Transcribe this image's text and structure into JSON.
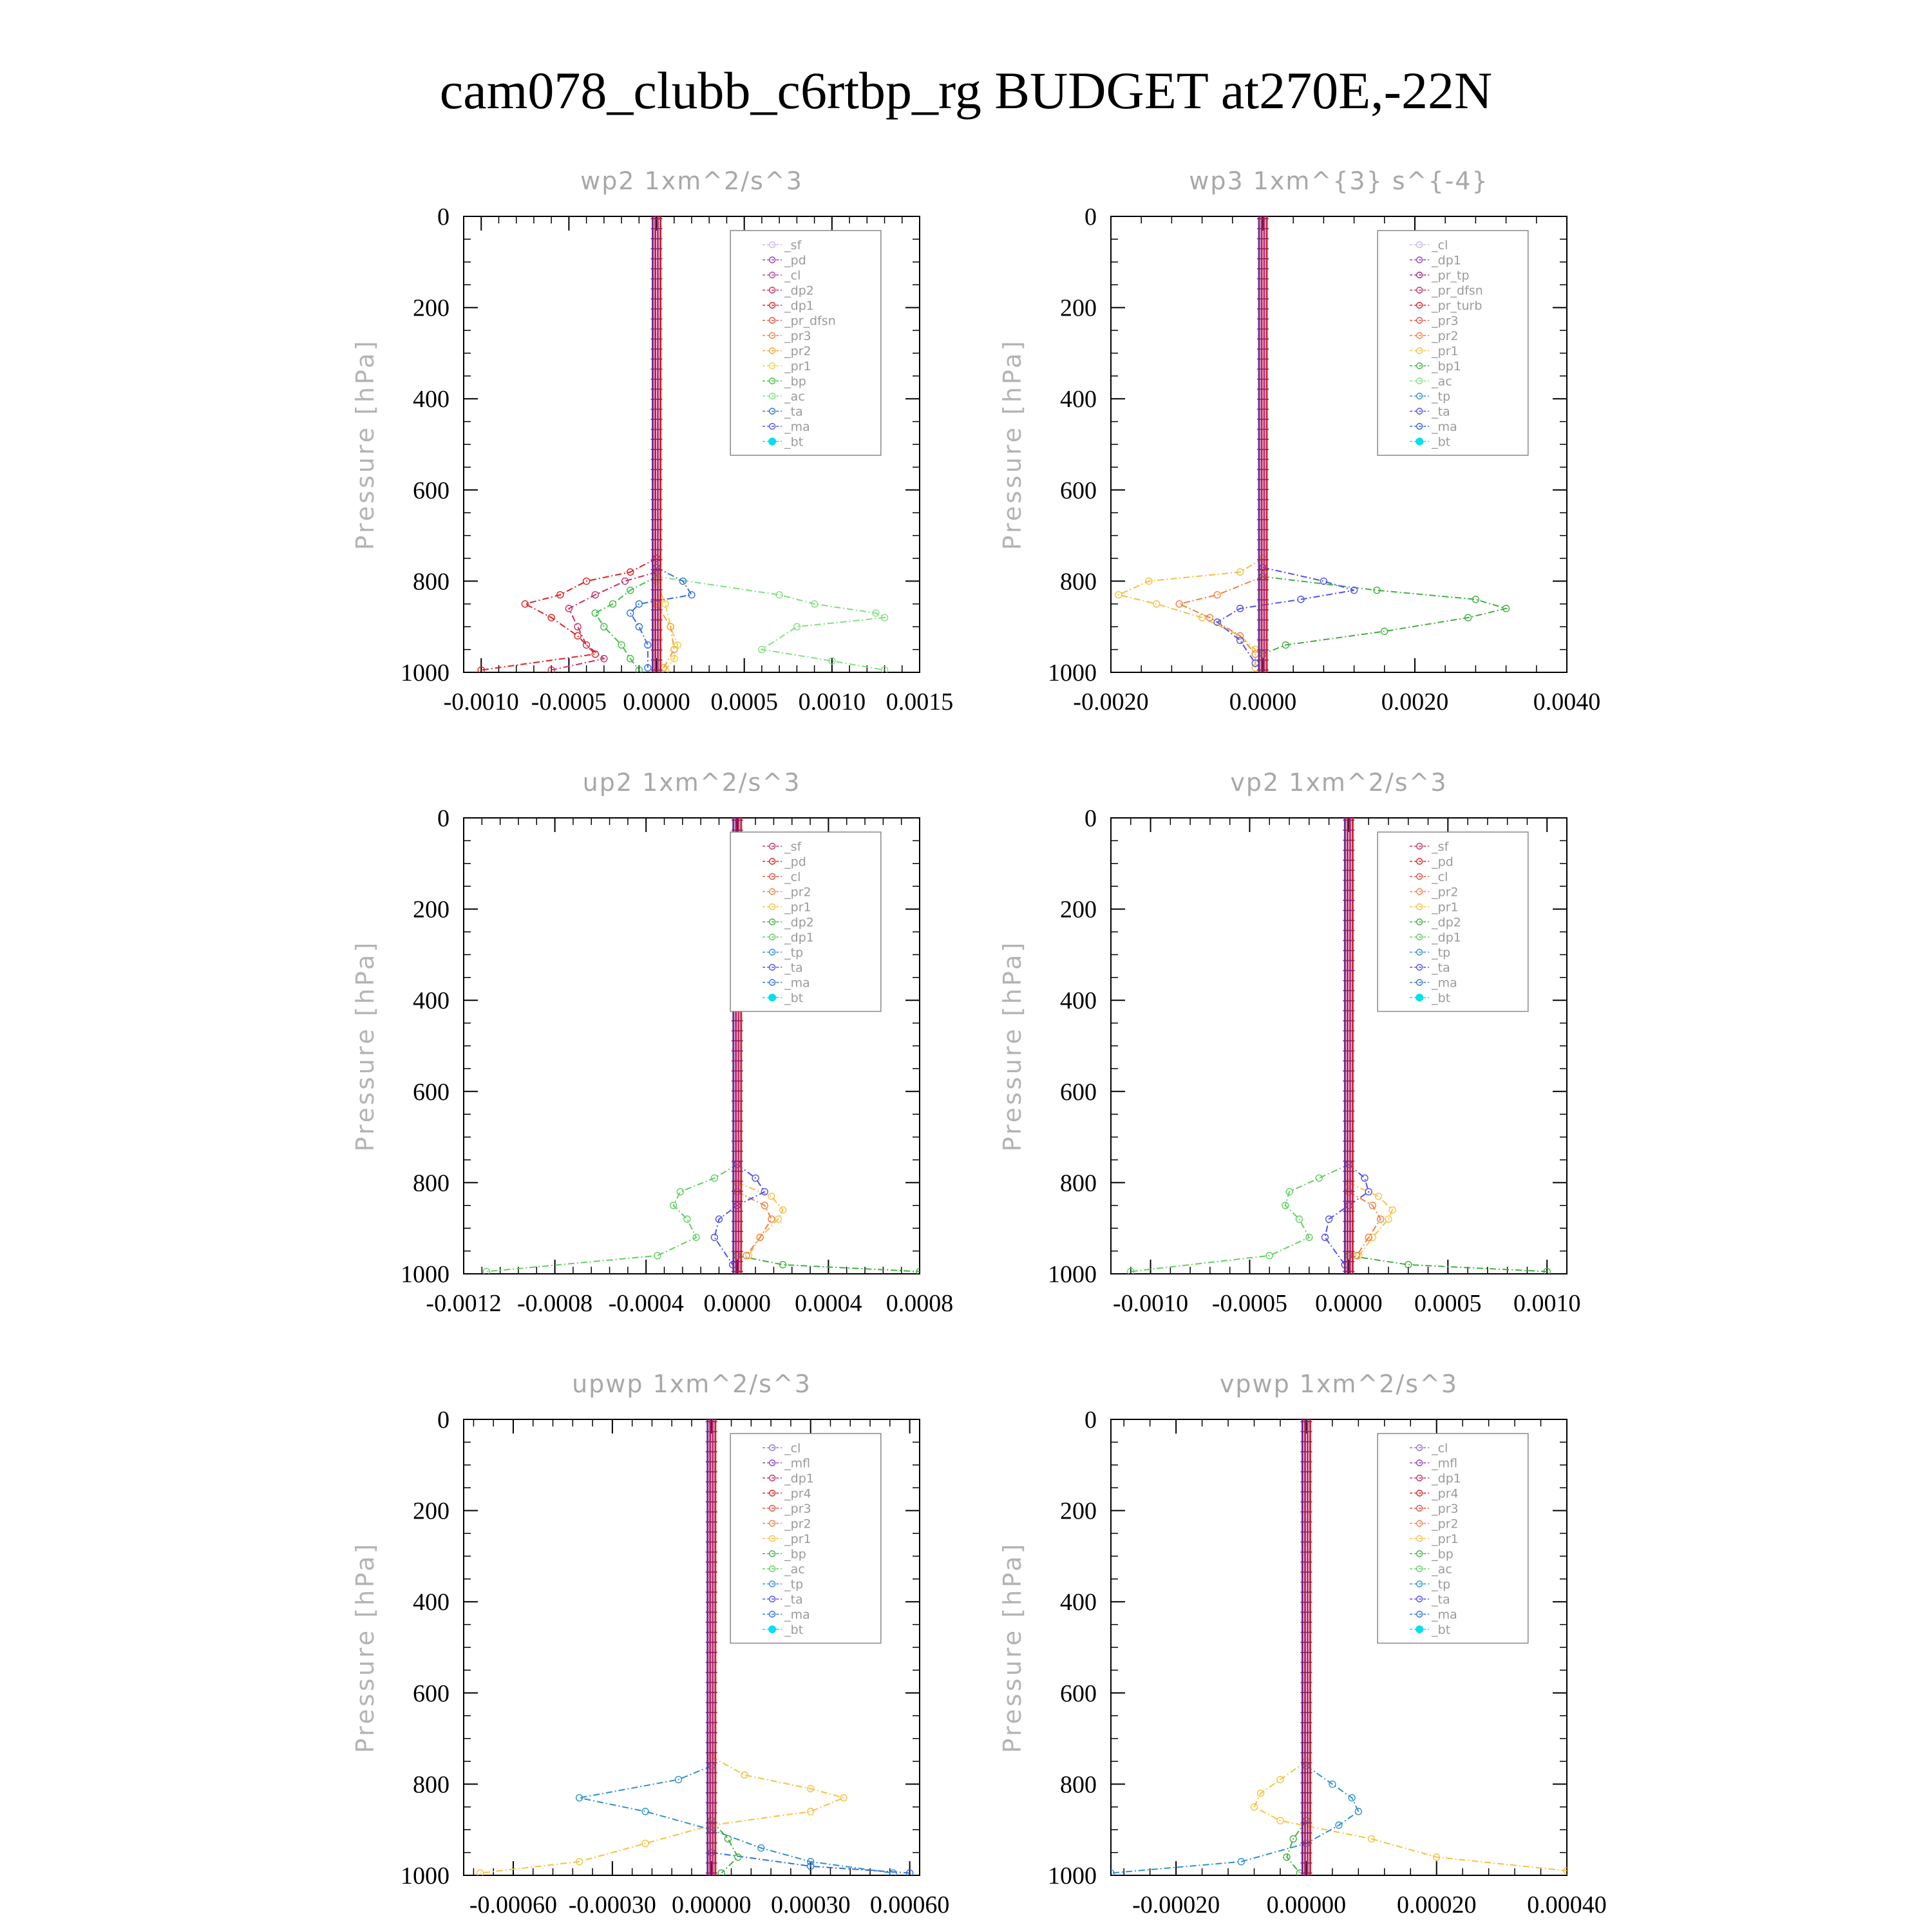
{
  "figure": {
    "title": "cam078_clubb_c6rtbp_rg  BUDGET at270E,-22N"
  },
  "chart_data": [
    {
      "type": "line",
      "title": "wp2   1xm^2/s^3",
      "ylabel": "Pressure [hPa]",
      "ylim": [
        1000,
        0
      ],
      "xlim": [
        -0.0011,
        0.0015
      ],
      "xticks": [
        -0.001,
        -0.0005,
        0.0,
        0.0005,
        0.001,
        0.0015
      ],
      "xtick_labels": [
        "-0.0010",
        "-0.0005",
        "0.0000",
        "0.0005",
        "0.0010",
        "0.0015"
      ],
      "yticks": [
        0,
        200,
        400,
        600,
        800,
        1000
      ],
      "legend_position": "top-right",
      "legend": [
        "_sf",
        "_pd",
        "_cl",
        "_dp2",
        "_dp1",
        "_pr_dfsn",
        "_pr3",
        "_pr2",
        "_pr1",
        "_bp",
        "_ac",
        "_ta",
        "_ma",
        "_bt"
      ],
      "series_colors": [
        "#c8b4e8",
        "#9040c0",
        "#b040a0",
        "#c83060",
        "#e02020",
        "#e05040",
        "#f08040",
        "#f8a030",
        "#f0d040",
        "#40c040",
        "#80e080",
        "#3070e0",
        "#5050f0",
        "#00e0f0"
      ],
      "series": [
        {
          "name": "_dp1",
          "pressure": [
            750,
            780,
            800,
            830,
            850,
            880,
            920,
            960,
            995
          ],
          "values": [
            0.0,
            -0.00015,
            -0.0004,
            -0.00055,
            -0.00075,
            -0.0006,
            -0.00045,
            -0.00035,
            -0.001
          ]
        },
        {
          "name": "_dp2",
          "pressure": [
            780,
            800,
            830,
            860,
            900,
            940,
            970,
            995
          ],
          "values": [
            0.0,
            -0.00018,
            -0.00035,
            -0.0005,
            -0.00045,
            -0.0004,
            -0.0003,
            -0.0006
          ]
        },
        {
          "name": "_bp",
          "pressure": [
            790,
            820,
            850,
            870,
            900,
            940,
            970,
            995
          ],
          "values": [
            0.0,
            -0.00015,
            -0.00025,
            -0.00035,
            -0.0003,
            -0.0002,
            -0.00015,
            -0.0001
          ]
        },
        {
          "name": "_ac",
          "pressure": [
            790,
            830,
            850,
            870,
            880,
            900,
            950,
            975,
            995
          ],
          "values": [
            0.0,
            0.0007,
            0.0009,
            0.00125,
            0.0013,
            0.0008,
            0.0006,
            0.001,
            0.0013
          ]
        },
        {
          "name": "_ta",
          "pressure": [
            770,
            800,
            830,
            850,
            870,
            900,
            940,
            990
          ],
          "values": [
            0.0,
            0.00015,
            0.0002,
            -0.0001,
            -0.00015,
            -0.0001,
            -5e-05,
            -5e-05
          ]
        },
        {
          "name": "_pr1",
          "pressure": [
            800,
            850,
            900,
            940,
            970,
            995
          ],
          "values": [
            0.0,
            5e-05,
            8e-05,
            0.00012,
            0.0001,
            5e-05
          ]
        },
        {
          "name": "_pr2",
          "pressure": [
            850,
            900,
            950,
            990
          ],
          "values": [
            0.0,
            8e-05,
            0.0001,
            4e-05
          ]
        }
      ]
    },
    {
      "type": "line",
      "title": "wp3   1xm^{3} s^{-4}",
      "ylabel": "Pressure [hPa]",
      "ylim": [
        1000,
        0
      ],
      "xlim": [
        -0.002,
        0.004
      ],
      "xticks": [
        -0.002,
        0.0,
        0.002,
        0.004
      ],
      "xtick_labels": [
        "-0.0020",
        "0.0000",
        "0.0020",
        "0.0040"
      ],
      "yticks": [
        0,
        200,
        400,
        600,
        800,
        1000
      ],
      "legend_position": "top-right",
      "legend": [
        "_cl",
        "_dp1",
        "_pr_tp",
        "_pr_dfsn",
        "_pr_turb",
        "_pr3",
        "_pr2",
        "_pr1",
        "_bp1",
        "_ac",
        "_tp",
        "_ta",
        "_ma",
        "_bt"
      ],
      "series_colors": [
        "#c8b4e8",
        "#9040c0",
        "#a02880",
        "#c83060",
        "#e02020",
        "#e05040",
        "#f08040",
        "#f0c040",
        "#40b040",
        "#80e080",
        "#3090d0",
        "#5050f0",
        "#3060e0",
        "#00e0f0"
      ],
      "series": [
        {
          "name": "_pr1",
          "pressure": [
            750,
            780,
            800,
            830,
            850,
            880,
            920,
            950,
            990
          ],
          "values": [
            0.0,
            -0.0003,
            -0.0015,
            -0.0019,
            -0.0014,
            -0.0008,
            -0.0003,
            -0.0001,
            -0.0001
          ]
        },
        {
          "name": "_pr2",
          "pressure": [
            790,
            830,
            850,
            880,
            920,
            960
          ],
          "values": [
            0.0,
            -0.0006,
            -0.0011,
            -0.0007,
            -0.0003,
            -0.0001
          ]
        },
        {
          "name": "_bp1",
          "pressure": [
            790,
            820,
            840,
            860,
            880,
            910,
            940,
            960
          ],
          "values": [
            0.0,
            0.0015,
            0.0028,
            0.0032,
            0.0027,
            0.0016,
            0.0003,
            0.0
          ]
        },
        {
          "name": "_ta",
          "pressure": [
            770,
            800,
            820,
            840,
            860,
            890,
            930,
            980
          ],
          "values": [
            0.0,
            0.0008,
            0.0012,
            0.0005,
            -0.0003,
            -0.0006,
            -0.0003,
            -0.0001
          ]
        }
      ]
    },
    {
      "type": "line",
      "title": "up2   1xm^2/s^3",
      "ylabel": "Pressure [hPa]",
      "ylim": [
        1000,
        0
      ],
      "xlim": [
        -0.0012,
        0.0008
      ],
      "xticks": [
        -0.0012,
        -0.0008,
        -0.0004,
        0.0,
        0.0004,
        0.0008
      ],
      "xtick_labels": [
        "-0.0012",
        "-0.0008",
        "-0.0004",
        "0.0000",
        "0.0004",
        "0.0008"
      ],
      "yticks": [
        0,
        200,
        400,
        600,
        800,
        1000
      ],
      "legend_position": "top-right",
      "legend": [
        "_sf",
        "_pd",
        "_cl",
        "_pr2",
        "_pr1",
        "_dp2",
        "_dp1",
        "_tp",
        "_ta",
        "_ma",
        "_bt"
      ],
      "series_colors": [
        "#c83060",
        "#e02020",
        "#e05040",
        "#f08040",
        "#f8c040",
        "#40b040",
        "#60d060",
        "#3090d0",
        "#5050f0",
        "#3070e0",
        "#00e0f0"
      ],
      "series": [
        {
          "name": "_dp1",
          "pressure": [
            760,
            790,
            820,
            850,
            880,
            920,
            960,
            995
          ],
          "values": [
            0.0,
            -0.0001,
            -0.00025,
            -0.00028,
            -0.00022,
            -0.00018,
            -0.00035,
            -0.0011
          ]
        },
        {
          "name": "_dp2",
          "pressure": [
            960,
            980,
            995
          ],
          "values": [
            0.0,
            0.0002,
            0.0008
          ]
        },
        {
          "name": "_pr1",
          "pressure": [
            800,
            830,
            860,
            880,
            920,
            960
          ],
          "values": [
            0.0,
            0.00015,
            0.0002,
            0.00018,
            0.0001,
            5e-05
          ]
        },
        {
          "name": "_pr2",
          "pressure": [
            820,
            850,
            880,
            920,
            960
          ],
          "values": [
            0.0,
            0.00012,
            0.00015,
            0.0001,
            4e-05
          ]
        },
        {
          "name": "_ta",
          "pressure": [
            760,
            790,
            820,
            850,
            880,
            920,
            980
          ],
          "values": [
            0.0,
            8e-05,
            0.00012,
            0.0,
            -8e-05,
            -0.0001,
            -2e-05
          ]
        }
      ]
    },
    {
      "type": "line",
      "title": "vp2   1xm^2/s^3",
      "ylabel": "Pressure [hPa]",
      "ylim": [
        1000,
        0
      ],
      "xlim": [
        -0.0012,
        0.0011
      ],
      "xticks": [
        -0.001,
        -0.0005,
        0.0,
        0.0005,
        0.001
      ],
      "xtick_labels": [
        "-0.0010",
        "-0.0005",
        "0.0000",
        "0.0005",
        "0.0010"
      ],
      "yticks": [
        0,
        200,
        400,
        600,
        800,
        1000
      ],
      "legend_position": "top-right",
      "legend": [
        "_sf",
        "_pd",
        "_cl",
        "_pr2",
        "_pr1",
        "_dp2",
        "_dp1",
        "_tp",
        "_ta",
        "_ma",
        "_bt"
      ],
      "series_colors": [
        "#c83060",
        "#e02020",
        "#e05040",
        "#f08040",
        "#f8c040",
        "#40b040",
        "#60d060",
        "#3090d0",
        "#5050f0",
        "#3070e0",
        "#00e0f0"
      ],
      "series": [
        {
          "name": "_dp1",
          "pressure": [
            760,
            790,
            820,
            850,
            880,
            920,
            960,
            995
          ],
          "values": [
            0.0,
            -0.00015,
            -0.0003,
            -0.00032,
            -0.00025,
            -0.0002,
            -0.0004,
            -0.0011
          ]
        },
        {
          "name": "_dp2",
          "pressure": [
            960,
            980,
            995
          ],
          "values": [
            0.0,
            0.0003,
            0.001
          ]
        },
        {
          "name": "_pr1",
          "pressure": [
            800,
            830,
            860,
            880,
            920,
            960
          ],
          "values": [
            0.0,
            0.00015,
            0.00022,
            0.0002,
            0.00012,
            5e-05
          ]
        },
        {
          "name": "_pr2",
          "pressure": [
            820,
            850,
            880,
            920,
            960
          ],
          "values": [
            0.0,
            0.00012,
            0.00016,
            0.0001,
            4e-05
          ]
        },
        {
          "name": "_ta",
          "pressure": [
            760,
            790,
            820,
            850,
            880,
            920,
            980
          ],
          "values": [
            0.0,
            8e-05,
            0.0001,
            0.0,
            -0.0001,
            -0.00012,
            -2e-05
          ]
        }
      ]
    },
    {
      "type": "line",
      "title": "upwp   1xm^2/s^3",
      "ylabel": "Pressure [hPa]",
      "ylim": [
        1000,
        0
      ],
      "xlim": [
        -0.00075,
        0.00063
      ],
      "xticks": [
        -0.0006,
        -0.0003,
        0.0,
        0.0003,
        0.0006
      ],
      "xtick_labels": [
        "-0.00060",
        "-0.00030",
        "0.00000",
        "0.00030",
        "0.00060"
      ],
      "yticks": [
        0,
        200,
        400,
        600,
        800,
        1000
      ],
      "legend_position": "top-right",
      "legend": [
        "_cl",
        "_mfl",
        "_dp1",
        "_pr4",
        "_pr3",
        "_pr2",
        "_pr1",
        "_bp",
        "_ac",
        "_tp",
        "_ta",
        "_ma",
        "_bt"
      ],
      "series_colors": [
        "#9070d0",
        "#9040c0",
        "#c83060",
        "#e02020",
        "#e05040",
        "#f08040",
        "#f8c040",
        "#40b040",
        "#60d060",
        "#3090d0",
        "#5050f0",
        "#3070e0",
        "#00e0f0"
      ],
      "series": [
        {
          "name": "_pr1",
          "pressure": [
            740,
            780,
            810,
            830,
            860,
            890,
            930,
            970,
            995
          ],
          "values": [
            0.0,
            0.0001,
            0.0003,
            0.0004,
            0.0003,
            0.0,
            -0.0002,
            -0.0004,
            -0.0007
          ]
        },
        {
          "name": "_tp",
          "pressure": [
            760,
            790,
            830,
            860,
            900,
            940,
            970,
            995
          ],
          "values": [
            0.0,
            -0.0001,
            -0.0004,
            -0.0002,
            0.0,
            0.00015,
            0.0003,
            0.00055
          ]
        },
        {
          "name": "_ma",
          "pressure": [
            950,
            980,
            995
          ],
          "values": [
            0.0,
            0.0003,
            0.0006
          ]
        },
        {
          "name": "_bp",
          "pressure": [
            880,
            920,
            960,
            995
          ],
          "values": [
            0.0,
            5e-05,
            8e-05,
            3e-05
          ]
        }
      ]
    },
    {
      "type": "line",
      "title": "vpwp   1xm^2/s^3",
      "ylabel": "Pressure [hPa]",
      "ylim": [
        1000,
        0
      ],
      "xlim": [
        -0.0003,
        0.0004
      ],
      "xticks": [
        -0.0002,
        0.0,
        0.0002,
        0.0004
      ],
      "xtick_labels": [
        "-0.00020",
        "0.00000",
        "0.00020",
        "0.00040"
      ],
      "yticks": [
        0,
        200,
        400,
        600,
        800,
        1000
      ],
      "legend_position": "top-right",
      "legend": [
        "_cl",
        "_mfl",
        "_dp1",
        "_pr4",
        "_pr3",
        "_pr2",
        "_pr1",
        "_bp",
        "_ac",
        "_tp",
        "_ta",
        "_ma",
        "_bt"
      ],
      "series_colors": [
        "#9070d0",
        "#9040c0",
        "#c83060",
        "#e02020",
        "#e05040",
        "#f08040",
        "#f8c040",
        "#40b040",
        "#60d060",
        "#3090d0",
        "#5050f0",
        "#3070e0",
        "#00e0f0"
      ],
      "series": [
        {
          "name": "_pr1",
          "pressure": [
            750,
            790,
            820,
            850,
            880,
            920,
            960,
            990
          ],
          "values": [
            0.0,
            -4e-05,
            -7e-05,
            -8e-05,
            -4e-05,
            0.0001,
            0.0002,
            0.0004
          ]
        },
        {
          "name": "_tp",
          "pressure": [
            760,
            800,
            830,
            860,
            890,
            930,
            970,
            995
          ],
          "values": [
            0.0,
            4e-05,
            7e-05,
            8e-05,
            5e-05,
            0.0,
            -0.0001,
            -0.0003
          ]
        },
        {
          "name": "_bp",
          "pressure": [
            880,
            920,
            960,
            995
          ],
          "values": [
            0.0,
            -2e-05,
            -3e-05,
            -1e-05
          ]
        }
      ]
    }
  ]
}
